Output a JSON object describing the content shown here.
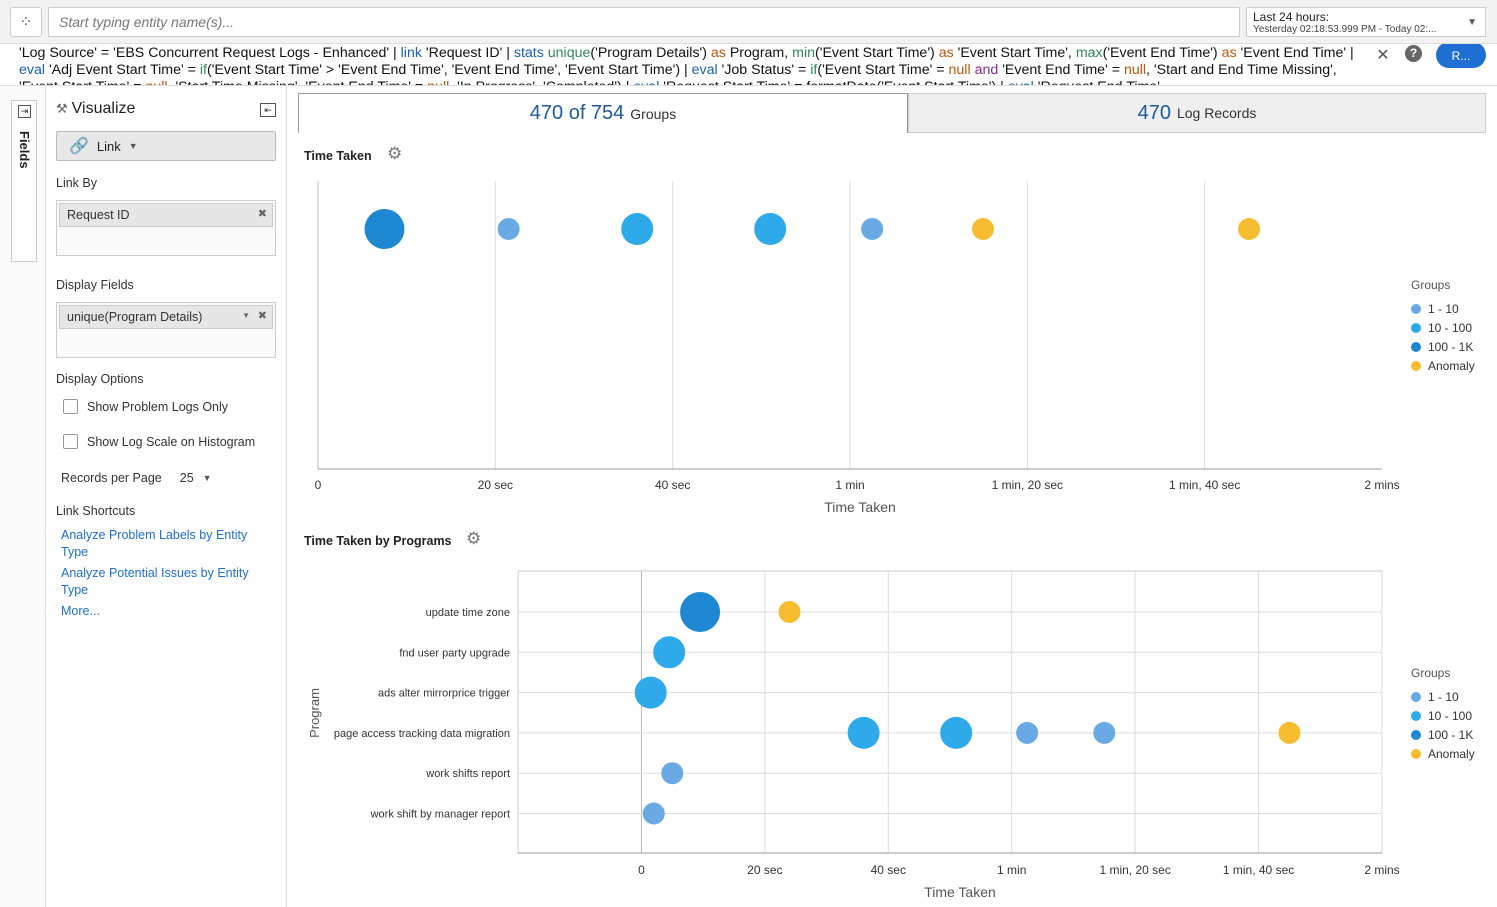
{
  "topbar": {
    "entity_placeholder": "Start typing entity name(s)...",
    "time_range_label": "Last 24 hours:",
    "time_range_detail": "Yesterday 02:18:53.999 PM - Today 02:..."
  },
  "query": {
    "segments": [
      {
        "t": "'Log Source' = 'EBS Concurrent Request Logs - Enhanced' | ",
        "c": ""
      },
      {
        "t": "link",
        "c": "kw"
      },
      {
        "t": " 'Request ID' | ",
        "c": ""
      },
      {
        "t": "stats",
        "c": "kw"
      },
      {
        "t": " ",
        "c": ""
      },
      {
        "t": "unique",
        "c": "fn"
      },
      {
        "t": "('Program Details') ",
        "c": ""
      },
      {
        "t": "as",
        "c": "as"
      },
      {
        "t": " Program, ",
        "c": ""
      },
      {
        "t": "min",
        "c": "fn"
      },
      {
        "t": "('Event Start Time') ",
        "c": ""
      },
      {
        "t": "as",
        "c": "as"
      },
      {
        "t": " 'Event Start Time', ",
        "c": ""
      },
      {
        "t": "max",
        "c": "fn"
      },
      {
        "t": "('Event End Time') ",
        "c": ""
      },
      {
        "t": "as",
        "c": "as"
      },
      {
        "t": " 'Event End Time' | ",
        "c": ""
      },
      {
        "t": "eval",
        "c": "kw"
      },
      {
        "t": " 'Adj Event Start Time' = ",
        "c": ""
      },
      {
        "t": "if",
        "c": "fn"
      },
      {
        "t": "('Event Start Time' > 'Event End Time', 'Event End Time', 'Event Start Time') | ",
        "c": ""
      },
      {
        "t": "eval",
        "c": "kw"
      },
      {
        "t": " 'Job Status' = ",
        "c": ""
      },
      {
        "t": "if",
        "c": "fn"
      },
      {
        "t": "('Event Start Time' = ",
        "c": ""
      },
      {
        "t": "null",
        "c": "null"
      },
      {
        "t": " ",
        "c": ""
      },
      {
        "t": "and",
        "c": "and"
      },
      {
        "t": " 'Event End Time' = ",
        "c": ""
      },
      {
        "t": "null",
        "c": "null"
      },
      {
        "t": ", 'Start and End Time Missing', 'Event Start Time' = ",
        "c": ""
      },
      {
        "t": "null",
        "c": "null"
      },
      {
        "t": ", 'Start Time Missing', 'Event End Time' = ",
        "c": ""
      },
      {
        "t": "null",
        "c": "null"
      },
      {
        "t": ", 'In Progress', 'Completed') | ",
        "c": ""
      },
      {
        "t": "eval",
        "c": "kw"
      },
      {
        "t": " 'Request Start Time' = formatDate('Event Start Time') | ",
        "c": ""
      },
      {
        "t": "eval",
        "c": "kw"
      },
      {
        "t": " 'Request End Time'",
        "c": ""
      }
    ],
    "run_label": "R..."
  },
  "sidebar": {
    "fields_tab_label": "Fields",
    "visualize_title": "Visualize",
    "viz_type": "Link",
    "link_by_label": "Link By",
    "link_by_value": "Request ID",
    "display_fields_label": "Display Fields",
    "display_fields_value": "unique(Program Details)",
    "display_options_label": "Display Options",
    "opt_problem_logs": "Show Problem Logs Only",
    "opt_log_scale": "Show Log Scale on Histogram",
    "records_per_page_label": "Records per Page",
    "records_per_page_value": "25",
    "link_shortcuts_label": "Link Shortcuts",
    "shortcut_1": "Analyze Problem Labels by Entity Type",
    "shortcut_2": "Analyze Potential Issues by Entity Type",
    "shortcut_more": "More..."
  },
  "tabs": {
    "groups_count": "470 of 754",
    "groups_label": "Groups",
    "records_count": "470",
    "records_label": "Log Records"
  },
  "colors": {
    "g1_10": "#6aaae4",
    "g10_100": "#2eaaea",
    "g100_1k": "#1f88d2",
    "anomaly": "#f7bd31"
  },
  "chart_data": [
    {
      "type": "scatter",
      "title": "Time Taken",
      "xlabel": "Time Taken",
      "ylabel": "",
      "xlim": [
        0,
        120
      ],
      "x_ticks": [
        0,
        20,
        40,
        60,
        80,
        100,
        120
      ],
      "x_tick_labels": [
        "0",
        "20 sec",
        "40 sec",
        "1 min",
        "1 min, 20 sec",
        "1 min, 40 sec",
        "2 mins"
      ],
      "legend_title": "Groups",
      "legend": [
        "1 - 10",
        "10 - 100",
        "100 - 1K",
        "Anomaly"
      ],
      "legend_position": "right",
      "points": [
        {
          "x": 7.5,
          "group": "100 - 1K",
          "size": "large"
        },
        {
          "x": 21.5,
          "group": "1 - 10",
          "size": "small"
        },
        {
          "x": 36,
          "group": "10 - 100",
          "size": "medium"
        },
        {
          "x": 51,
          "group": "10 - 100",
          "size": "medium"
        },
        {
          "x": 62.5,
          "group": "1 - 10",
          "size": "small"
        },
        {
          "x": 75,
          "group": "Anomaly",
          "size": "small"
        },
        {
          "x": 105,
          "group": "Anomaly",
          "size": "small"
        }
      ]
    },
    {
      "type": "scatter",
      "title": "Time Taken by Programs",
      "xlabel": "Time Taken",
      "ylabel": "Program",
      "xlim": [
        -20,
        120
      ],
      "x_ticks": [
        0,
        20,
        40,
        60,
        80,
        100,
        120
      ],
      "x_tick_labels": [
        "0",
        "20 sec",
        "40 sec",
        "1 min",
        "1 min, 20 sec",
        "1 min, 40 sec",
        "2 mins"
      ],
      "categories": [
        "update time zone",
        "fnd user party upgrade",
        "ads alter mirrorprice trigger",
        "page access tracking data migration",
        "work shifts report",
        "work shift by manager report"
      ],
      "legend_title": "Groups",
      "legend": [
        "1 - 10",
        "10 - 100",
        "100 - 1K",
        "Anomaly"
      ],
      "legend_position": "right",
      "points": [
        {
          "cat": 0,
          "x": 9.5,
          "group": "100 - 1K",
          "size": "large"
        },
        {
          "cat": 0,
          "x": 24,
          "group": "Anomaly",
          "size": "small"
        },
        {
          "cat": 1,
          "x": 4.5,
          "group": "10 - 100",
          "size": "medium"
        },
        {
          "cat": 2,
          "x": 1.5,
          "group": "10 - 100",
          "size": "medium"
        },
        {
          "cat": 3,
          "x": 36,
          "group": "10 - 100",
          "size": "medium"
        },
        {
          "cat": 3,
          "x": 51,
          "group": "10 - 100",
          "size": "medium"
        },
        {
          "cat": 3,
          "x": 62.5,
          "group": "1 - 10",
          "size": "small"
        },
        {
          "cat": 3,
          "x": 75,
          "group": "1 - 10",
          "size": "small"
        },
        {
          "cat": 3,
          "x": 105,
          "group": "Anomaly",
          "size": "small"
        },
        {
          "cat": 4,
          "x": 5,
          "group": "1 - 10",
          "size": "small"
        },
        {
          "cat": 5,
          "x": 2,
          "group": "1 - 10",
          "size": "small"
        }
      ]
    }
  ]
}
